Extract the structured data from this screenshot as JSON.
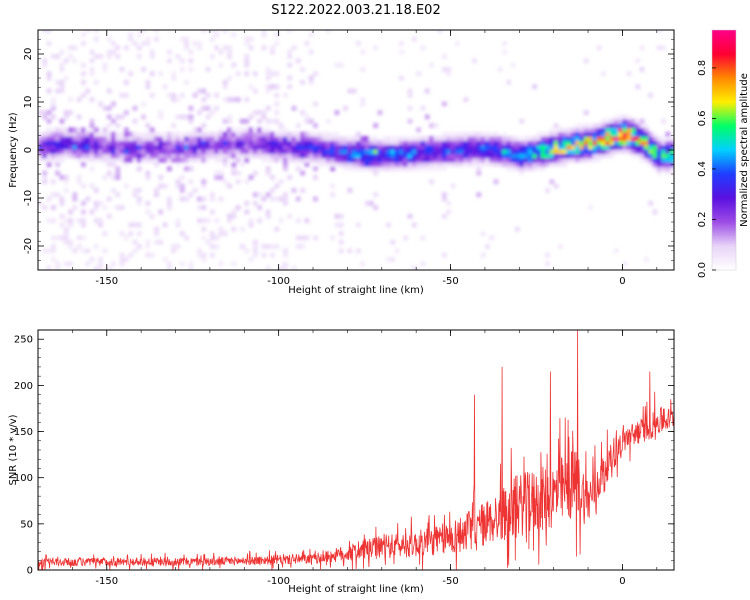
{
  "figure": {
    "title": "S122.2022.003.21.18.E02"
  },
  "chart_data": [
    {
      "type": "heatmap",
      "title": "S122.2022.003.21.18.E02",
      "xlabel": "Height of straight line (km)",
      "ylabel": "Frequency (Hz)",
      "xlim": [
        -170,
        15
      ],
      "ylim": [
        -25,
        25
      ],
      "x_ticks": [
        "-150",
        "-100",
        "-50",
        "0"
      ],
      "x_tick_values": [
        -150,
        -100,
        -50,
        0
      ],
      "y_ticks": [
        "-20",
        "-10",
        "0",
        "10",
        "20"
      ],
      "y_tick_values": [
        -20,
        -10,
        0,
        10,
        20
      ],
      "colorbar": {
        "label": "Normalized spectral amplitude",
        "range": [
          0,
          0.95
        ],
        "ticks": [
          "0.0",
          "0.2",
          "0.4",
          "0.6",
          "0.8"
        ],
        "tick_values": [
          0.0,
          0.2,
          0.4,
          0.6,
          0.8
        ],
        "colors": [
          "#ffffff",
          "#e7d3f7",
          "#9d4ce6",
          "#5a10e0",
          "#1f3dff",
          "#00d0ff",
          "#00ff66",
          "#ffee00",
          "#ff8800",
          "#ff0033",
          "#ff0088"
        ]
      },
      "ridge": [
        {
          "x": -170,
          "f": 0.5,
          "a": 0.3
        },
        {
          "x": -160,
          "f": 1.0,
          "a": 0.3
        },
        {
          "x": -150,
          "f": 0.0,
          "a": 0.25
        },
        {
          "x": -140,
          "f": 0.0,
          "a": 0.25
        },
        {
          "x": -130,
          "f": 0.0,
          "a": 0.25
        },
        {
          "x": -120,
          "f": 0.5,
          "a": 0.25
        },
        {
          "x": -110,
          "f": 1.0,
          "a": 0.28
        },
        {
          "x": -100,
          "f": 0.5,
          "a": 0.3
        },
        {
          "x": -90,
          "f": 0.0,
          "a": 0.32
        },
        {
          "x": -80,
          "f": -1.0,
          "a": 0.4
        },
        {
          "x": -70,
          "f": -1.5,
          "a": 0.45
        },
        {
          "x": -60,
          "f": -1.0,
          "a": 0.4
        },
        {
          "x": -50,
          "f": -0.5,
          "a": 0.38
        },
        {
          "x": -40,
          "f": 0.0,
          "a": 0.4
        },
        {
          "x": -30,
          "f": -1.5,
          "a": 0.5
        },
        {
          "x": -20,
          "f": 0.0,
          "a": 0.65
        },
        {
          "x": -10,
          "f": 1.0,
          "a": 0.75
        },
        {
          "x": 0,
          "f": 3.0,
          "a": 0.9
        },
        {
          "x": 5,
          "f": 1.5,
          "a": 0.7
        },
        {
          "x": 10,
          "f": -1.5,
          "a": 0.55
        }
      ]
    },
    {
      "type": "line",
      "xlabel": "Height of straight line (km)",
      "ylabel": "SNR (10 * v/v)",
      "xlim": [
        -170,
        15
      ],
      "ylim": [
        0,
        260
      ],
      "x_ticks": [
        "-150",
        "-100",
        "-50",
        "0"
      ],
      "x_tick_values": [
        -150,
        -100,
        -50,
        0
      ],
      "y_ticks": [
        "0",
        "50",
        "100",
        "150",
        "200",
        "250"
      ],
      "y_tick_values": [
        0,
        50,
        100,
        150,
        200,
        250
      ],
      "series_color": "#ee3333",
      "envelope": [
        {
          "x": -170,
          "base": 8,
          "amp": 10
        },
        {
          "x": -150,
          "base": 9,
          "amp": 10
        },
        {
          "x": -120,
          "base": 9,
          "amp": 10
        },
        {
          "x": -90,
          "base": 12,
          "amp": 12
        },
        {
          "x": -80,
          "base": 18,
          "amp": 20
        },
        {
          "x": -70,
          "base": 25,
          "amp": 28
        },
        {
          "x": -60,
          "base": 28,
          "amp": 32
        },
        {
          "x": -50,
          "base": 35,
          "amp": 40
        },
        {
          "x": -40,
          "base": 50,
          "amp": 55
        },
        {
          "x": -30,
          "base": 70,
          "amp": 75
        },
        {
          "x": -20,
          "base": 80,
          "amp": 80
        },
        {
          "x": -14,
          "base": 95,
          "amp": 90
        },
        {
          "x": -10,
          "base": 75,
          "amp": 60
        },
        {
          "x": -5,
          "base": 110,
          "amp": 40
        },
        {
          "x": 0,
          "base": 140,
          "amp": 30
        },
        {
          "x": 5,
          "base": 150,
          "amp": 30
        },
        {
          "x": 10,
          "base": 160,
          "amp": 35
        },
        {
          "x": 15,
          "base": 165,
          "amp": 25
        }
      ],
      "peaks": [
        {
          "x": -13,
          "y": 260
        },
        {
          "x": -35,
          "y": 220
        },
        {
          "x": 8,
          "y": 215
        },
        {
          "x": -21,
          "y": 215
        },
        {
          "x": -43,
          "y": 190
        }
      ]
    }
  ]
}
